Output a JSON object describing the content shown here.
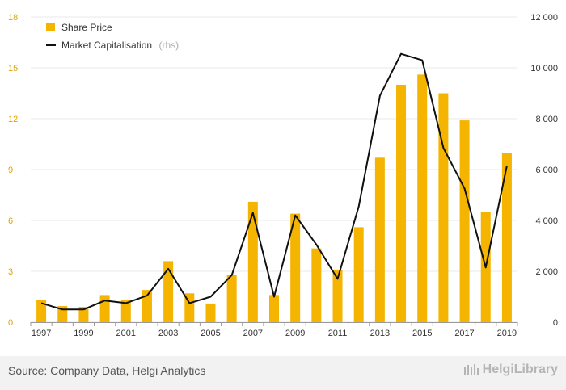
{
  "chart_data": {
    "type": "bar",
    "categories": [
      "1997",
      "1998",
      "1999",
      "2000",
      "2001",
      "2002",
      "2003",
      "2004",
      "2005",
      "2006",
      "2007",
      "2008",
      "2009",
      "2010",
      "2011",
      "2012",
      "2013",
      "2014",
      "2015",
      "2016",
      "2017",
      "2018",
      "2019"
    ],
    "series": [
      {
        "name": "Share Price",
        "kind": "bar",
        "axis": "left",
        "color": "#f5b400",
        "values": [
          1.3,
          0.95,
          0.9,
          1.6,
          1.3,
          1.9,
          3.6,
          1.7,
          1.1,
          2.8,
          7.1,
          1.6,
          6.4,
          4.35,
          3.1,
          5.6,
          9.7,
          14.0,
          14.6,
          13.5,
          11.9,
          6.5,
          10.0
        ]
      },
      {
        "name": "Market Capitalisation",
        "name_suffix": "(rhs)",
        "kind": "line",
        "axis": "right",
        "color": "#111111",
        "values": [
          750,
          500,
          500,
          850,
          750,
          1050,
          2100,
          750,
          1000,
          1850,
          4300,
          1000,
          4200,
          3050,
          1700,
          4550,
          8900,
          10550,
          10300,
          6850,
          5250,
          2150,
          6150
        ]
      }
    ],
    "left_axis": {
      "ylim": [
        0,
        18
      ],
      "ticks": [
        "0",
        "3",
        "6",
        "9",
        "12",
        "15",
        "18"
      ],
      "values": [
        0,
        3,
        6,
        9,
        12,
        15,
        18
      ]
    },
    "right_axis": {
      "ylim": [
        0,
        12000
      ],
      "ticks": [
        "0",
        "2 000",
        "4 000",
        "6 000",
        "8 000",
        "10 000",
        "12 000"
      ],
      "values": [
        0,
        2000,
        4000,
        6000,
        8000,
        10000,
        12000
      ]
    },
    "x_tick_labels": [
      "1997",
      "",
      "1999",
      "",
      "2001",
      "",
      "2003",
      "",
      "2005",
      "",
      "2007",
      "",
      "2009",
      "",
      "2011",
      "",
      "2013",
      "",
      "2015",
      "",
      "2017",
      "",
      "2019"
    ],
    "grid": true,
    "legend_position": "top-left"
  },
  "footer": {
    "source": "Source: Company Data, Helgi Analytics",
    "brand": "HelgiLibrary"
  }
}
